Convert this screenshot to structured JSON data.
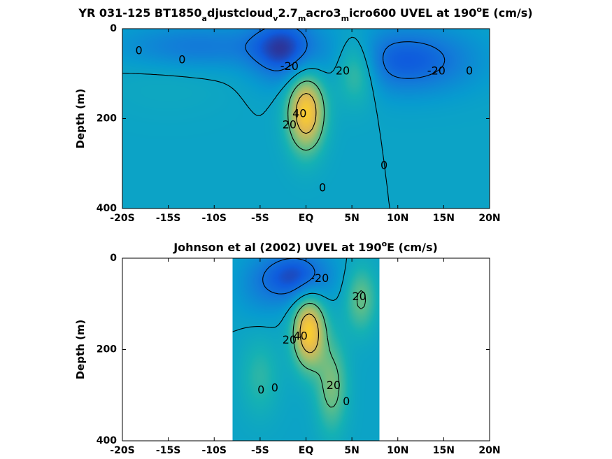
{
  "chart_data": [
    {
      "type": "heatmap",
      "title": {
        "parts": [
          {
            "t": "YR 031-125 BT1850",
            "s": "n"
          },
          {
            "t": "a",
            "s": "sub"
          },
          {
            "t": "djustcloud",
            "s": "n"
          },
          {
            "t": "v",
            "s": "sub"
          },
          {
            "t": "2.7",
            "s": "n"
          },
          {
            "t": "m",
            "s": "sub"
          },
          {
            "t": "acro3",
            "s": "n"
          },
          {
            "t": "m",
            "s": "sub"
          },
          {
            "t": "icro600 UVEL at 190",
            "s": "n"
          },
          {
            "t": "o",
            "s": "sup"
          },
          {
            "t": "E (cm/s)",
            "s": "n"
          }
        ]
      },
      "ylabel": "Depth (m)",
      "xlabel": "",
      "x_ticks": [
        "-20S",
        "-15S",
        "-10S",
        "-5S",
        "EQ",
        "5N",
        "10N",
        "15N",
        "20N"
      ],
      "x_tick_values": [
        -20,
        -15,
        -10,
        -5,
        0,
        5,
        10,
        15,
        20
      ],
      "y_ticks": [
        "0",
        "200",
        "400"
      ],
      "y_tick_values": [
        0,
        200,
        400
      ],
      "xlim": [
        -20,
        20
      ],
      "ylim": [
        0,
        400
      ],
      "y_reversed": true,
      "colorscale": "parula",
      "contour_interval": 20,
      "data_extent": [
        -20,
        20
      ],
      "features": [
        {
          "kind": "max",
          "x": 0,
          "y": 185,
          "value": 55,
          "sx": 1.4,
          "sy": 60
        },
        {
          "kind": "max",
          "x": 5.5,
          "y": 90,
          "value": 25,
          "sx": 1.6,
          "sy": 50
        },
        {
          "kind": "min",
          "x": -2.5,
          "y": 45,
          "value": -32,
          "sx": 2.5,
          "sy": 50
        },
        {
          "kind": "min",
          "x": 11,
          "y": 70,
          "value": -28,
          "sx": 5,
          "sy": 50
        },
        {
          "kind": "min",
          "x": -12,
          "y": 40,
          "value": -18,
          "sx": 6,
          "sy": 35
        },
        {
          "kind": "max",
          "x": -15,
          "y": 110,
          "value": 3,
          "sx": 5,
          "sy": 60
        }
      ],
      "contour_labels": [
        {
          "text": "0",
          "x": -18.2,
          "y": 50
        },
        {
          "text": "0",
          "x": -13.5,
          "y": 70
        },
        {
          "text": "-20",
          "x": -1.8,
          "y": 85
        },
        {
          "text": "20",
          "x": 4,
          "y": 95
        },
        {
          "text": "-20",
          "x": 14.2,
          "y": 95
        },
        {
          "text": "0",
          "x": 17.8,
          "y": 95
        },
        {
          "text": "20",
          "x": -1.8,
          "y": 215
        },
        {
          "text": "40",
          "x": -0.7,
          "y": 190
        },
        {
          "text": "0",
          "x": 8.5,
          "y": 305
        },
        {
          "text": "0",
          "x": 1.8,
          "y": 355
        }
      ]
    },
    {
      "type": "heatmap",
      "title": {
        "parts": [
          {
            "t": "Johnson et al (2002) UVEL at 190",
            "s": "n"
          },
          {
            "t": "o",
            "s": "sup"
          },
          {
            "t": "E (cm/s)",
            "s": "n"
          }
        ]
      },
      "ylabel": "Depth (m)",
      "xlabel": "",
      "x_ticks": [
        "-20S",
        "-15S",
        "-10S",
        "-5S",
        "EQ",
        "5N",
        "10N",
        "15N",
        "20N"
      ],
      "x_tick_values": [
        -20,
        -15,
        -10,
        -5,
        0,
        5,
        10,
        15,
        20
      ],
      "y_ticks": [
        "0",
        "200",
        "400"
      ],
      "y_tick_values": [
        0,
        200,
        400
      ],
      "xlim": [
        -20,
        20
      ],
      "ylim": [
        0,
        400
      ],
      "y_reversed": true,
      "colorscale": "parula",
      "contour_interval": 20,
      "data_extent": [
        -8,
        8
      ],
      "features": [
        {
          "kind": "max",
          "x": 0.3,
          "y": 160,
          "value": 55,
          "sx": 1.2,
          "sy": 55
        },
        {
          "kind": "min",
          "x": -1,
          "y": 40,
          "value": -32,
          "sx": 2.5,
          "sy": 40
        },
        {
          "kind": "max",
          "x": 6,
          "y": 90,
          "value": 22,
          "sx": 1.2,
          "sy": 50
        },
        {
          "kind": "max",
          "x": 2.8,
          "y": 280,
          "value": 25,
          "sx": 1.2,
          "sy": 70
        },
        {
          "kind": "max",
          "x": -5,
          "y": 260,
          "value": 12,
          "sx": 1.5,
          "sy": 60
        },
        {
          "kind": "min",
          "x": -5,
          "y": 60,
          "value": -10,
          "sx": 2,
          "sy": 50
        }
      ],
      "contour_labels": [
        {
          "text": "-20",
          "x": 1.5,
          "y": 45
        },
        {
          "text": "20",
          "x": 5.8,
          "y": 85
        },
        {
          "text": "20",
          "x": -1.8,
          "y": 180
        },
        {
          "text": "40",
          "x": -0.6,
          "y": 172
        },
        {
          "text": "0",
          "x": -4.9,
          "y": 290
        },
        {
          "text": "0",
          "x": -3.4,
          "y": 285
        },
        {
          "text": "20",
          "x": 3,
          "y": 280
        },
        {
          "text": "0",
          "x": 4.4,
          "y": 315
        }
      ]
    }
  ]
}
